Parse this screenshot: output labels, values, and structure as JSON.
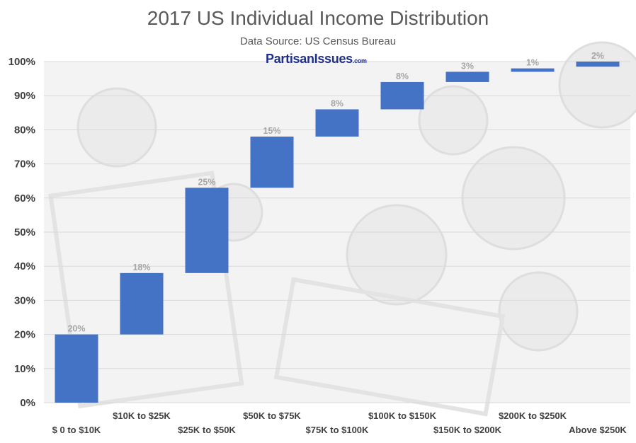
{
  "colors": {
    "bar": "#4472C4",
    "label": "#A6A6A6",
    "axis_text": "#404040",
    "grid": "#D9D9D9",
    "title": "#595959"
  },
  "watermark": "PartisanIssues.com",
  "chart_data": {
    "type": "bar",
    "subtype": "waterfall",
    "title": "2017 US Individual Income Distribution",
    "subtitle": "Data Source: US Census Bureau",
    "categories": [
      "$ 0 to $10K",
      "$10K to $25K",
      "$25K to $50K",
      "$50K to $75K",
      "$75K to $100K",
      "$100K to $150K",
      "$150K to $200K",
      "$200K to $250K",
      "Above $250K"
    ],
    "values": [
      20,
      18,
      25,
      15,
      8,
      8,
      3,
      1,
      2
    ],
    "base": [
      0,
      20,
      38,
      63,
      78,
      86,
      94,
      97,
      98.5
    ],
    "labels": [
      "20%",
      "18%",
      "25%",
      "15%",
      "8%",
      "8%",
      "3%",
      "1%",
      "2%"
    ],
    "yticks": [
      "0%",
      "10%",
      "20%",
      "30%",
      "40%",
      "50%",
      "60%",
      "70%",
      "80%",
      "90%",
      "100%"
    ],
    "ylim": [
      0,
      100
    ],
    "grid": true,
    "legend": "none"
  }
}
